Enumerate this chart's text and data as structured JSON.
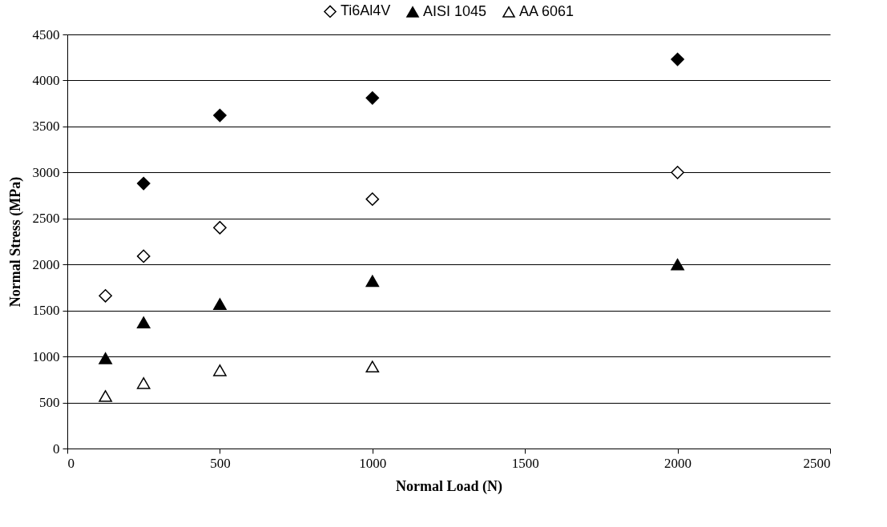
{
  "chart_data": {
    "type": "scatter",
    "xlabel": "Normal Load (N)",
    "ylabel": "Normal Stress (MPa)",
    "xlim": [
      0,
      2500
    ],
    "xticks": [
      0,
      500,
      1000,
      1500,
      2000,
      2500
    ],
    "ylim": [
      0,
      4500
    ],
    "yticks": [
      0,
      500,
      1000,
      1500,
      2000,
      2500,
      3000,
      3500,
      4000,
      4500
    ],
    "grid": "y",
    "legend": "top",
    "series": [
      {
        "color": "#000000",
        "marker": "diamond",
        "x": [
          250,
          500,
          1000,
          2000
        ],
        "values": [
          2880,
          3620,
          3810,
          4230
        ]
      },
      {
        "name": "Ti6Al4V",
        "color": "#ffffff",
        "marker": "diamond",
        "x": [
          125,
          250,
          500,
          1000,
          2000
        ],
        "values": [
          1660,
          2090,
          2400,
          2710,
          3000
        ]
      },
      {
        "name": "AISI 1045",
        "color": "#000000",
        "marker": "triangle",
        "x": [
          125,
          250,
          500,
          1000,
          2000
        ],
        "values": [
          980,
          1370,
          1570,
          1820,
          2000
        ]
      },
      {
        "name": "AA 6061",
        "color": "#ffffff",
        "marker": "triangle",
        "x": [
          125,
          250,
          500,
          1000
        ],
        "values": [
          570,
          710,
          850,
          890
        ]
      }
    ]
  }
}
